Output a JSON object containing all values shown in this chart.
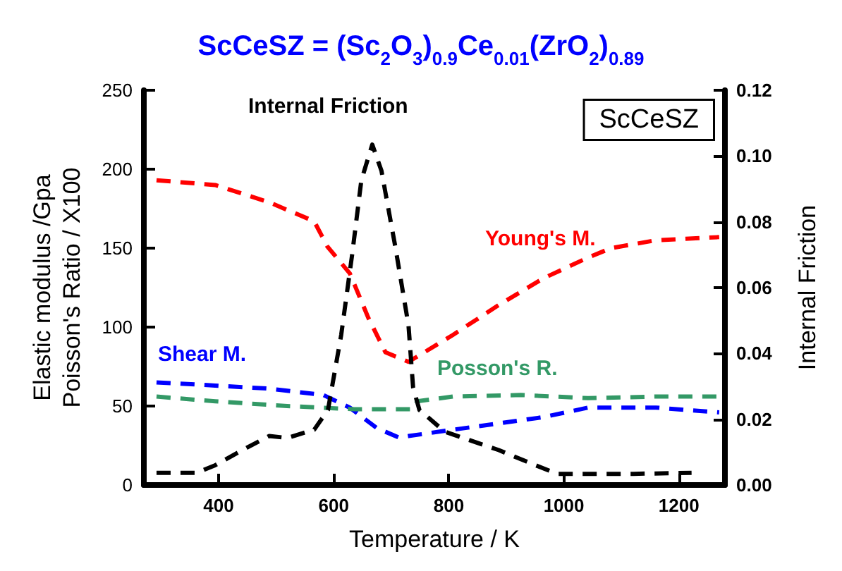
{
  "chart_data": {
    "type": "line",
    "title": "ScCeSZ = (Sc$_{2}$O$_{3}$)$_{0.9}$Ce$_{0.01}$(ZrO$_{2}$)$_{0.89}$",
    "xlabel": "Temperature / K",
    "ylabel": "Elastic modulus /Gpa\nPoisson's Ratio / X100",
    "y2label": "Internal Friction",
    "annotations": [
      "ScCeSZ"
    ],
    "xlim": [
      270,
      1280
    ],
    "xticks": [
      400,
      600,
      800,
      1000,
      1200
    ],
    "ylim": [
      0,
      250
    ],
    "yticks": [
      0,
      50,
      100,
      150,
      200,
      250
    ],
    "y2lim": [
      0,
      0.12
    ],
    "y2ticks": [
      {
        "value": 0,
        "label": "0.00"
      },
      0.02,
      0.04,
      0.06,
      0.08,
      {
        "value": 0.1,
        "label": "0.10"
      },
      0.12
    ],
    "grid": false,
    "legend": false,
    "marker": "none",
    "line_style": "dashed",
    "series": [
      {
        "name": "Young's M.",
        "color": "#ff0000",
        "x": [
          292,
          394,
          488,
          566,
          589,
          628,
          660,
          690,
          730,
          807,
          887,
          965,
          1042,
          1082,
          1160,
          1270
        ],
        "values": [
          193,
          190,
          179,
          167,
          151,
          134,
          106,
          84,
          78,
          95,
          114,
          131,
          144,
          150,
          155,
          157
        ]
      },
      {
        "name": "Shear M.",
        "color": "#0000ff",
        "x": [
          292,
          394,
          488,
          582,
          628,
          675,
          714,
          730,
          807,
          887,
          965,
          1042,
          1082,
          1160,
          1270
        ],
        "values": [
          65,
          63,
          61,
          57,
          49,
          36,
          30,
          31,
          35,
          39,
          43,
          49,
          49,
          49,
          46
        ]
      },
      {
        "name": "Posson's R.",
        "color": "#339966",
        "x": [
          292,
          394,
          519,
          636,
          738,
          745,
          807,
          925,
          1042,
          1160,
          1200,
          1270
        ],
        "values": [
          56,
          53,
          50,
          48,
          48,
          53,
          56,
          57,
          55,
          56,
          56,
          56
        ]
      },
      {
        "name": "Internal Friction",
        "color": "#000000",
        "axis": "y2",
        "x": [
          292,
          362,
          394,
          441,
          488,
          519,
          566,
          590,
          613,
          632,
          648,
          667,
          683,
          707,
          730,
          738,
          749,
          793,
          887,
          941,
          988,
          1042,
          1121,
          1222
        ],
        "values": [
          0.0037,
          0.0037,
          0.006,
          0.0106,
          0.0149,
          0.0143,
          0.0168,
          0.0228,
          0.0456,
          0.07,
          0.0926,
          0.1035,
          0.0955,
          0.0725,
          0.0485,
          0.0296,
          0.0228,
          0.0162,
          0.0106,
          0.0067,
          0.0034,
          0.0034,
          0.0034,
          0.0037
        ]
      }
    ]
  }
}
